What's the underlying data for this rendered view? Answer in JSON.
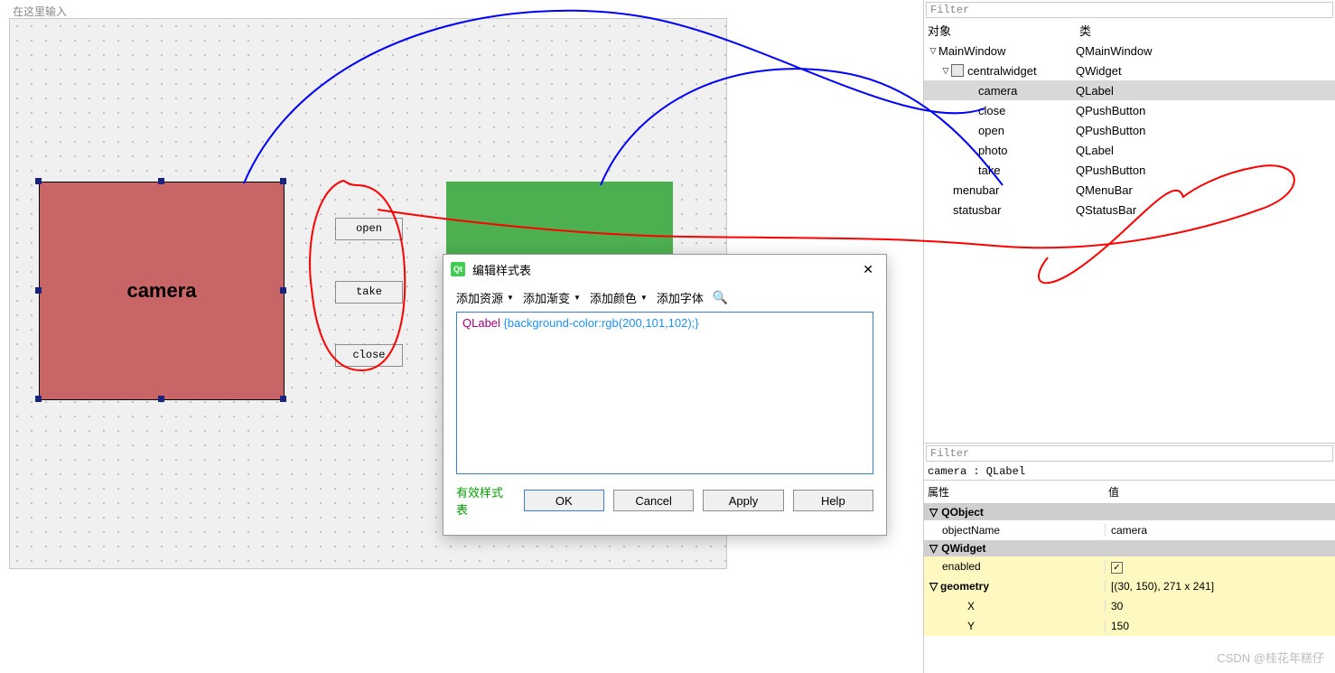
{
  "canvas": {
    "placeholder": "在这里输入",
    "camera_label": "camera",
    "camera_color": "#c86566",
    "photo_color": "#4caf50",
    "buttons": {
      "open": "open",
      "take": "take",
      "close": "close"
    }
  },
  "dialog": {
    "title": "编辑样式表",
    "toolbar": {
      "add_resource": "添加资源",
      "add_gradient": "添加渐变",
      "add_color": "添加颜色",
      "add_font": "添加字体"
    },
    "css_selector": "QLabel",
    "css_body": "{background-color:rgb(200,101,102);}",
    "valid": "有效样式表",
    "ok": "OK",
    "cancel": "Cancel",
    "apply": "Apply",
    "help": "Help"
  },
  "inspector": {
    "filter": "Filter",
    "head_obj": "对象",
    "head_cls": "类",
    "rows": [
      {
        "name": "MainWindow",
        "cls": "QMainWindow",
        "lvl": 0,
        "exp": true
      },
      {
        "name": "centralwidget",
        "cls": "QWidget",
        "lvl": 1,
        "exp": true,
        "icon": true
      },
      {
        "name": "camera",
        "cls": "QLabel",
        "lvl": 3,
        "sel": true
      },
      {
        "name": "close",
        "cls": "QPushButton",
        "lvl": 3
      },
      {
        "name": "open",
        "cls": "QPushButton",
        "lvl": 3
      },
      {
        "name": "photo",
        "cls": "QLabel",
        "lvl": 3
      },
      {
        "name": "take",
        "cls": "QPushButton",
        "lvl": 3
      },
      {
        "name": "menubar",
        "cls": "QMenuBar",
        "lvl": 2
      },
      {
        "name": "statusbar",
        "cls": "QStatusBar",
        "lvl": 2
      }
    ]
  },
  "props": {
    "filter": "Filter",
    "header": "camera : QLabel",
    "col_prop": "属性",
    "col_val": "值",
    "groups": [
      {
        "name": "QObject",
        "rows": [
          {
            "k": "objectName",
            "v": "camera"
          }
        ]
      },
      {
        "name": "QWidget",
        "rows": [
          {
            "k": "enabled",
            "v": "check",
            "hl": true
          },
          {
            "k": "geometry",
            "v": "[(30, 150), 271 x 241]",
            "hl": true,
            "bold": true,
            "exp": true
          },
          {
            "k": "X",
            "v": "30",
            "hl": true,
            "sub": true
          },
          {
            "k": "Y",
            "v": "150",
            "hl": true,
            "sub": true
          }
        ]
      }
    ]
  },
  "watermark": "CSDN @桂花年糕仔"
}
